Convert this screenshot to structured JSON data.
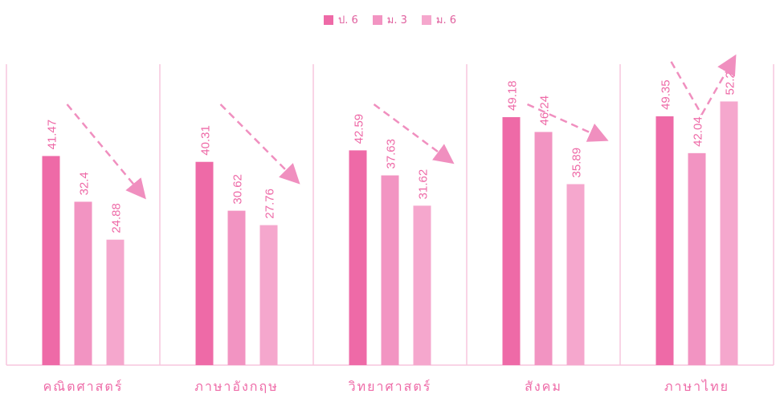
{
  "chart_data": {
    "type": "bar",
    "categories": [
      "คณิตศาสตร์",
      "ภาษาอังกฤษ",
      "วิทยาศาสตร์",
      "สังคม",
      "ภาษาไทย"
    ],
    "series": [
      {
        "name": "ป. 6",
        "color": "#ee6aa7",
        "values": [
          41.47,
          40.31,
          42.59,
          49.18,
          49.35
        ]
      },
      {
        "name": "ม. 3",
        "color": "#f294c2",
        "values": [
          32.4,
          30.62,
          37.63,
          46.24,
          42.04
        ]
      },
      {
        "name": "ม. 6",
        "color": "#f5a7cd",
        "values": [
          24.88,
          27.76,
          31.62,
          35.89,
          52.29
        ]
      }
    ],
    "data_labels": [
      [
        "41.47",
        "40.31",
        "42.59",
        "49.18",
        "49.35"
      ],
      [
        "32.4",
        "30.62",
        "37.63",
        "46.24",
        "42.04"
      ],
      [
        "24.88",
        "27.76",
        "31.62",
        "35.89",
        "52.29"
      ]
    ],
    "ylim": [
      0,
      60
    ],
    "legend_position": "top-center",
    "grid": false,
    "label_color": "#ee6aa7",
    "divider_color": "#f7c6dd",
    "arrow_color": "#f08fbf"
  }
}
